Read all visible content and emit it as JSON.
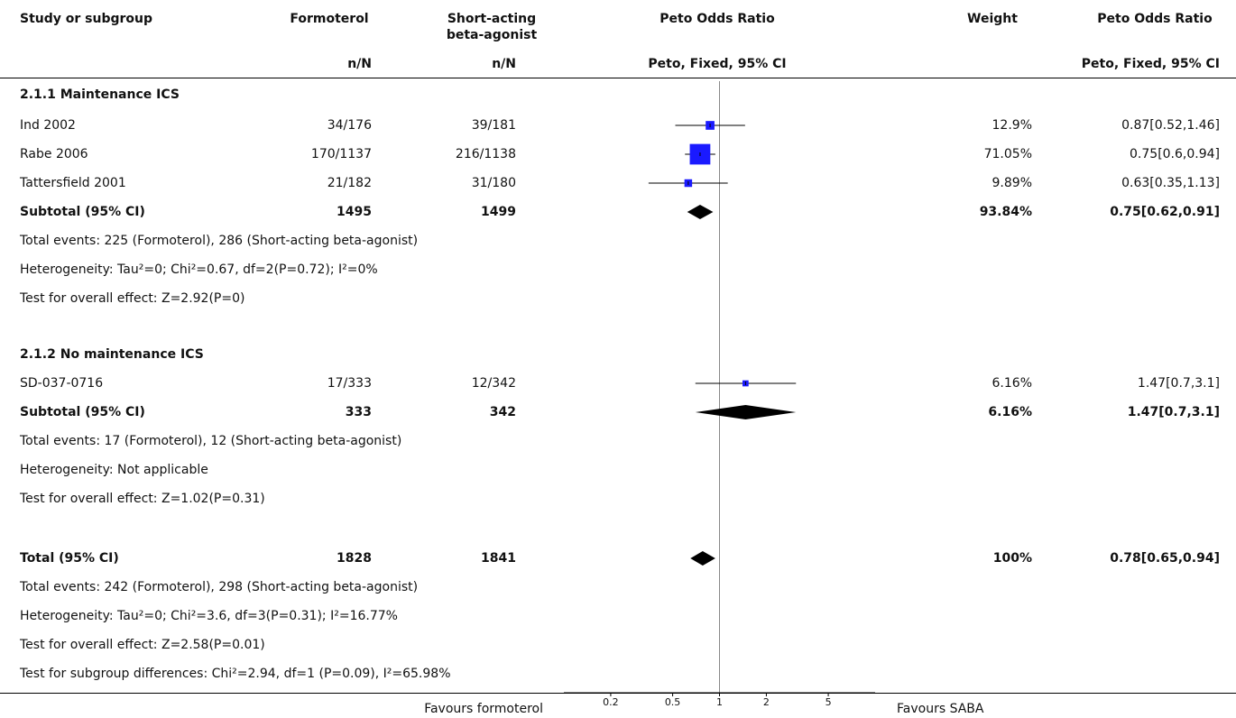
{
  "headers": {
    "study": "Study or subgroup",
    "formoterol": "Formoterol",
    "saba_line1": "Short-acting",
    "saba_line2": "beta-agonist",
    "peto1": "Peto Odds Ratio",
    "weight": "Weight",
    "peto2": "Peto Odds Ratio",
    "nN1": "n/N",
    "nN2": "n/N",
    "method1": "Peto, Fixed, 95% CI",
    "method2": "Peto, Fixed, 95% CI"
  },
  "subgroups": [
    {
      "title": "2.1.1 Maintenance ICS",
      "studies": [
        {
          "name": "Ind 2002",
          "formoterol": "34/176",
          "saba": "39/181",
          "weight": "12.9%",
          "ci": "0.87[0.52,1.46]"
        },
        {
          "name": "Rabe 2006",
          "formoterol": "170/1137",
          "saba": "216/1138",
          "weight": "71.05%",
          "ci": "0.75[0.6,0.94]"
        },
        {
          "name": "Tattersfield 2001",
          "formoterol": "21/182",
          "saba": "31/180",
          "weight": "9.89%",
          "ci": "0.63[0.35,1.13]"
        }
      ],
      "subtotal": {
        "label": "Subtotal (95% CI)",
        "formoterol": "1495",
        "saba": "1499",
        "weight": "93.84%",
        "ci": "0.75[0.62,0.91]"
      },
      "notes": [
        "Total events: 225 (Formoterol), 286 (Short-acting beta-agonist)",
        "Heterogeneity: Tau²=0; Chi²=0.67, df=2(P=0.72); I²=0%",
        "Test for overall effect: Z=2.92(P=0)"
      ]
    },
    {
      "title": "2.1.2 No maintenance ICS",
      "studies": [
        {
          "name": "SD-037-0716",
          "formoterol": "17/333",
          "saba": "12/342",
          "weight": "6.16%",
          "ci": "1.47[0.7,3.1]"
        }
      ],
      "subtotal": {
        "label": "Subtotal (95% CI)",
        "formoterol": "333",
        "saba": "342",
        "weight": "6.16%",
        "ci": "1.47[0.7,3.1]"
      },
      "notes": [
        "Total events: 17 (Formoterol), 12 (Short-acting beta-agonist)",
        "Heterogeneity: Not applicable",
        "Test for overall effect: Z=1.02(P=0.31)"
      ]
    }
  ],
  "total": {
    "label": "Total (95% CI)",
    "formoterol": "1828",
    "saba": "1841",
    "weight": "100%",
    "ci": "0.78[0.65,0.94]"
  },
  "total_notes": [
    "Total events: 242 (Formoterol), 298 (Short-acting beta-agonist)",
    "Heterogeneity: Tau²=0; Chi²=3.6, df=3(P=0.31); I²=16.77%",
    "Test for overall effect: Z=2.58(P=0.01)",
    "Test for subgroup differences: Chi²=2.94, df=1 (P=0.09), I²=65.98%"
  ],
  "axis": {
    "left_label": "Favours formoterol",
    "right_label": "Favours SABA"
  },
  "colors": {
    "marker": "#1a1aff",
    "diamond": "#000000",
    "line": "#000000"
  },
  "chart_data": {
    "type": "forest",
    "scale": "log",
    "xlim": [
      0.1,
      10
    ],
    "xticks": [
      0.2,
      0.5,
      1,
      2,
      5
    ],
    "reference_line": 1,
    "studies": [
      {
        "name": "Ind 2002",
        "or": 0.87,
        "lo": 0.52,
        "hi": 1.46,
        "weight": 12.9
      },
      {
        "name": "Rabe 2006",
        "or": 0.75,
        "lo": 0.6,
        "hi": 0.94,
        "weight": 71.05
      },
      {
        "name": "Tattersfield 2001",
        "or": 0.63,
        "lo": 0.35,
        "hi": 1.13,
        "weight": 9.89
      },
      {
        "name": "SD-037-0716",
        "or": 1.47,
        "lo": 0.7,
        "hi": 3.1,
        "weight": 6.16
      }
    ],
    "diamonds": [
      {
        "name": "Subtotal 2.1.1",
        "or": 0.75,
        "lo": 0.62,
        "hi": 0.91
      },
      {
        "name": "Subtotal 2.1.2",
        "or": 1.47,
        "lo": 0.7,
        "hi": 3.1
      },
      {
        "name": "Total",
        "or": 0.78,
        "lo": 0.65,
        "hi": 0.94
      }
    ]
  }
}
